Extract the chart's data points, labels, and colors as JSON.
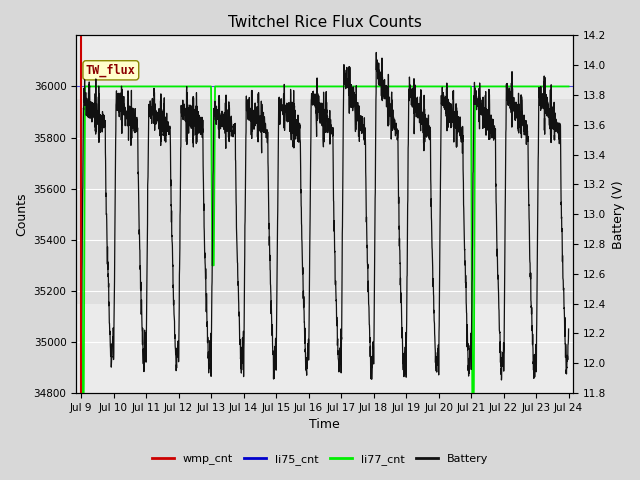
{
  "title": "Twitchel Rice Flux Counts",
  "xlabel": "Time",
  "ylabel_left": "Counts",
  "ylabel_right": "Battery (V)",
  "ylim_left": [
    34800,
    36200
  ],
  "ylim_right": [
    11.8,
    14.2
  ],
  "xtick_labels": [
    "Jul 9",
    "Jul 10",
    "Jul 11",
    "Jul 12",
    "Jul 13",
    "Jul 14",
    "Jul 15",
    "Jul 16",
    "Jul 17",
    "Jul 18",
    "Jul 19",
    "Jul 20",
    "Jul 21",
    "Jul 22",
    "Jul 23",
    "Jul 24"
  ],
  "ytick_left": [
    34800,
    35000,
    35200,
    35400,
    35600,
    35800,
    36000
  ],
  "ytick_right": [
    11.8,
    12.0,
    12.2,
    12.4,
    12.6,
    12.8,
    13.0,
    13.2,
    13.4,
    13.6,
    13.8,
    14.0,
    14.2
  ],
  "bg_color": "#d8d8d8",
  "plot_bg_color": "#ebebeb",
  "li77_color": "#00ee00",
  "li75_color": "#0000cc",
  "wmp_color": "#cc0000",
  "battery_color": "#111111",
  "annotation_text": "TW_flux",
  "shaded_band_low": 35150,
  "shaded_band_high": 35950,
  "shaded_band_color": "#d0d0d0"
}
